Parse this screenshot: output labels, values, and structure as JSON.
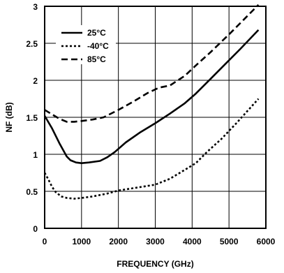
{
  "chart_data": {
    "type": "line",
    "xlabel": "FREQUENCY (GHz)",
    "ylabel": "NF (dB)",
    "xlim": [
      0,
      6000
    ],
    "ylim": [
      0,
      3
    ],
    "xticks": [
      0,
      1000,
      2000,
      3000,
      4000,
      5000,
      6000
    ],
    "yticks": [
      0,
      0.5,
      1,
      1.5,
      2,
      2.5,
      3
    ],
    "xtick_labels": [
      "0",
      "1000",
      "2000",
      "3000",
      "4000",
      "5000",
      "6000"
    ],
    "ytick_labels": [
      "0",
      "0.5",
      "1",
      "1.5",
      "2",
      "2.5",
      "3"
    ],
    "grid": true,
    "legend_position": "top-left",
    "series": [
      {
        "name": "25°C",
        "style": "solid",
        "x": [
          0,
          200,
          400,
          600,
          700,
          850,
          1000,
          1200,
          1500,
          1700,
          1900,
          2200,
          2600,
          3000,
          3400,
          3800,
          4100,
          4500,
          4900,
          5300,
          5800
        ],
        "y": [
          1.52,
          1.35,
          1.15,
          0.97,
          0.92,
          0.89,
          0.88,
          0.89,
          0.91,
          0.96,
          1.03,
          1.16,
          1.3,
          1.42,
          1.55,
          1.69,
          1.82,
          2.02,
          2.22,
          2.42,
          2.68
        ]
      },
      {
        "name": "-40°C",
        "style": "dotted",
        "x": [
          0,
          100,
          200,
          300,
          450,
          600,
          800,
          1000,
          1300,
          1700,
          2000,
          2500,
          3000,
          3400,
          3800,
          4100,
          4400,
          4800,
          5200,
          5800
        ],
        "y": [
          0.75,
          0.66,
          0.56,
          0.49,
          0.43,
          0.41,
          0.4,
          0.41,
          0.43,
          0.47,
          0.51,
          0.55,
          0.59,
          0.67,
          0.79,
          0.88,
          1.03,
          1.21,
          1.42,
          1.75
        ]
      },
      {
        "name": "85°C",
        "style": "dashed",
        "x": [
          0,
          200,
          400,
          600,
          800,
          1000,
          1300,
          1600,
          2000,
          2400,
          2800,
          3100,
          3400,
          3800,
          4100,
          4500,
          5000,
          5500,
          5800
        ],
        "y": [
          1.6,
          1.54,
          1.48,
          1.44,
          1.44,
          1.45,
          1.47,
          1.5,
          1.6,
          1.71,
          1.83,
          1.9,
          1.93,
          2.06,
          2.2,
          2.38,
          2.62,
          2.87,
          3.02
        ]
      }
    ]
  }
}
